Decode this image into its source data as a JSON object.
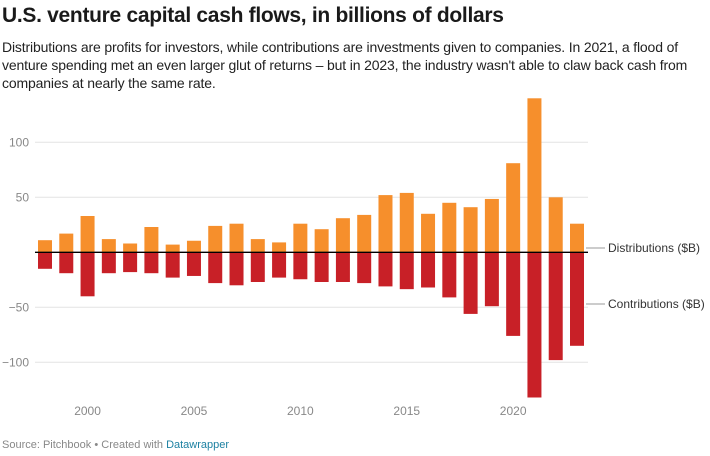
{
  "header": {
    "title": "U.S. venture capital cash flows, in billions of dollars",
    "subtitle": "Distributions are profits for investors, while contributions are investments given to companies. In 2021, a flood of venture spending met an even larger glut of returns – but in 2023, the industry wasn't able to claw back cash from companies at nearly the same rate."
  },
  "footer": {
    "source": "Source: Pitchbook",
    "separator": " • ",
    "created_with": "Created with ",
    "link_label": "Datawrapper"
  },
  "colors": {
    "distributions": "#f68f2c",
    "contributions": "#c82027",
    "zero_line": "#000000",
    "grid": "#e3e3e3",
    "link": "#1d81a2"
  },
  "chart_data": {
    "type": "bar",
    "stacked_diverging": true,
    "title": "U.S. venture capital cash flows, in billions of dollars",
    "xlabel": "",
    "ylabel": "",
    "x": [
      1998,
      1999,
      2000,
      2001,
      2002,
      2003,
      2004,
      2005,
      2006,
      2007,
      2008,
      2009,
      2010,
      2011,
      2012,
      2013,
      2014,
      2015,
      2016,
      2017,
      2018,
      2019,
      2020,
      2021,
      2022,
      2023
    ],
    "series": [
      {
        "name": "Distributions ($B)",
        "color": "#f68f2c",
        "values": [
          11,
          17,
          33,
          12,
          8,
          23,
          7,
          10.5,
          24,
          26,
          12,
          9,
          26,
          21,
          31,
          34,
          52,
          54,
          35,
          45,
          41,
          48.5,
          81,
          140,
          50,
          26
        ]
      },
      {
        "name": "Contributions ($B)",
        "color": "#c82027",
        "values": [
          -15,
          -19,
          -40,
          -19,
          -18,
          -19,
          -23,
          -21.5,
          -28,
          -30,
          -27,
          -23,
          -24.5,
          -27,
          -27,
          -28,
          -31,
          -33.5,
          -32,
          -41,
          -56,
          -49,
          -76,
          -132,
          -98,
          -85
        ]
      }
    ],
    "ylim": [
      -133,
      142
    ],
    "yticks": [
      100,
      50,
      -50,
      -100
    ],
    "ytick_labels": [
      "100",
      "50",
      "−50",
      "−100"
    ],
    "xticks": [
      2000,
      2005,
      2010,
      2015,
      2020
    ],
    "xtick_labels": [
      "2000",
      "2005",
      "2010",
      "2015",
      "2020"
    ],
    "grid": true,
    "legend": "inline-right"
  }
}
